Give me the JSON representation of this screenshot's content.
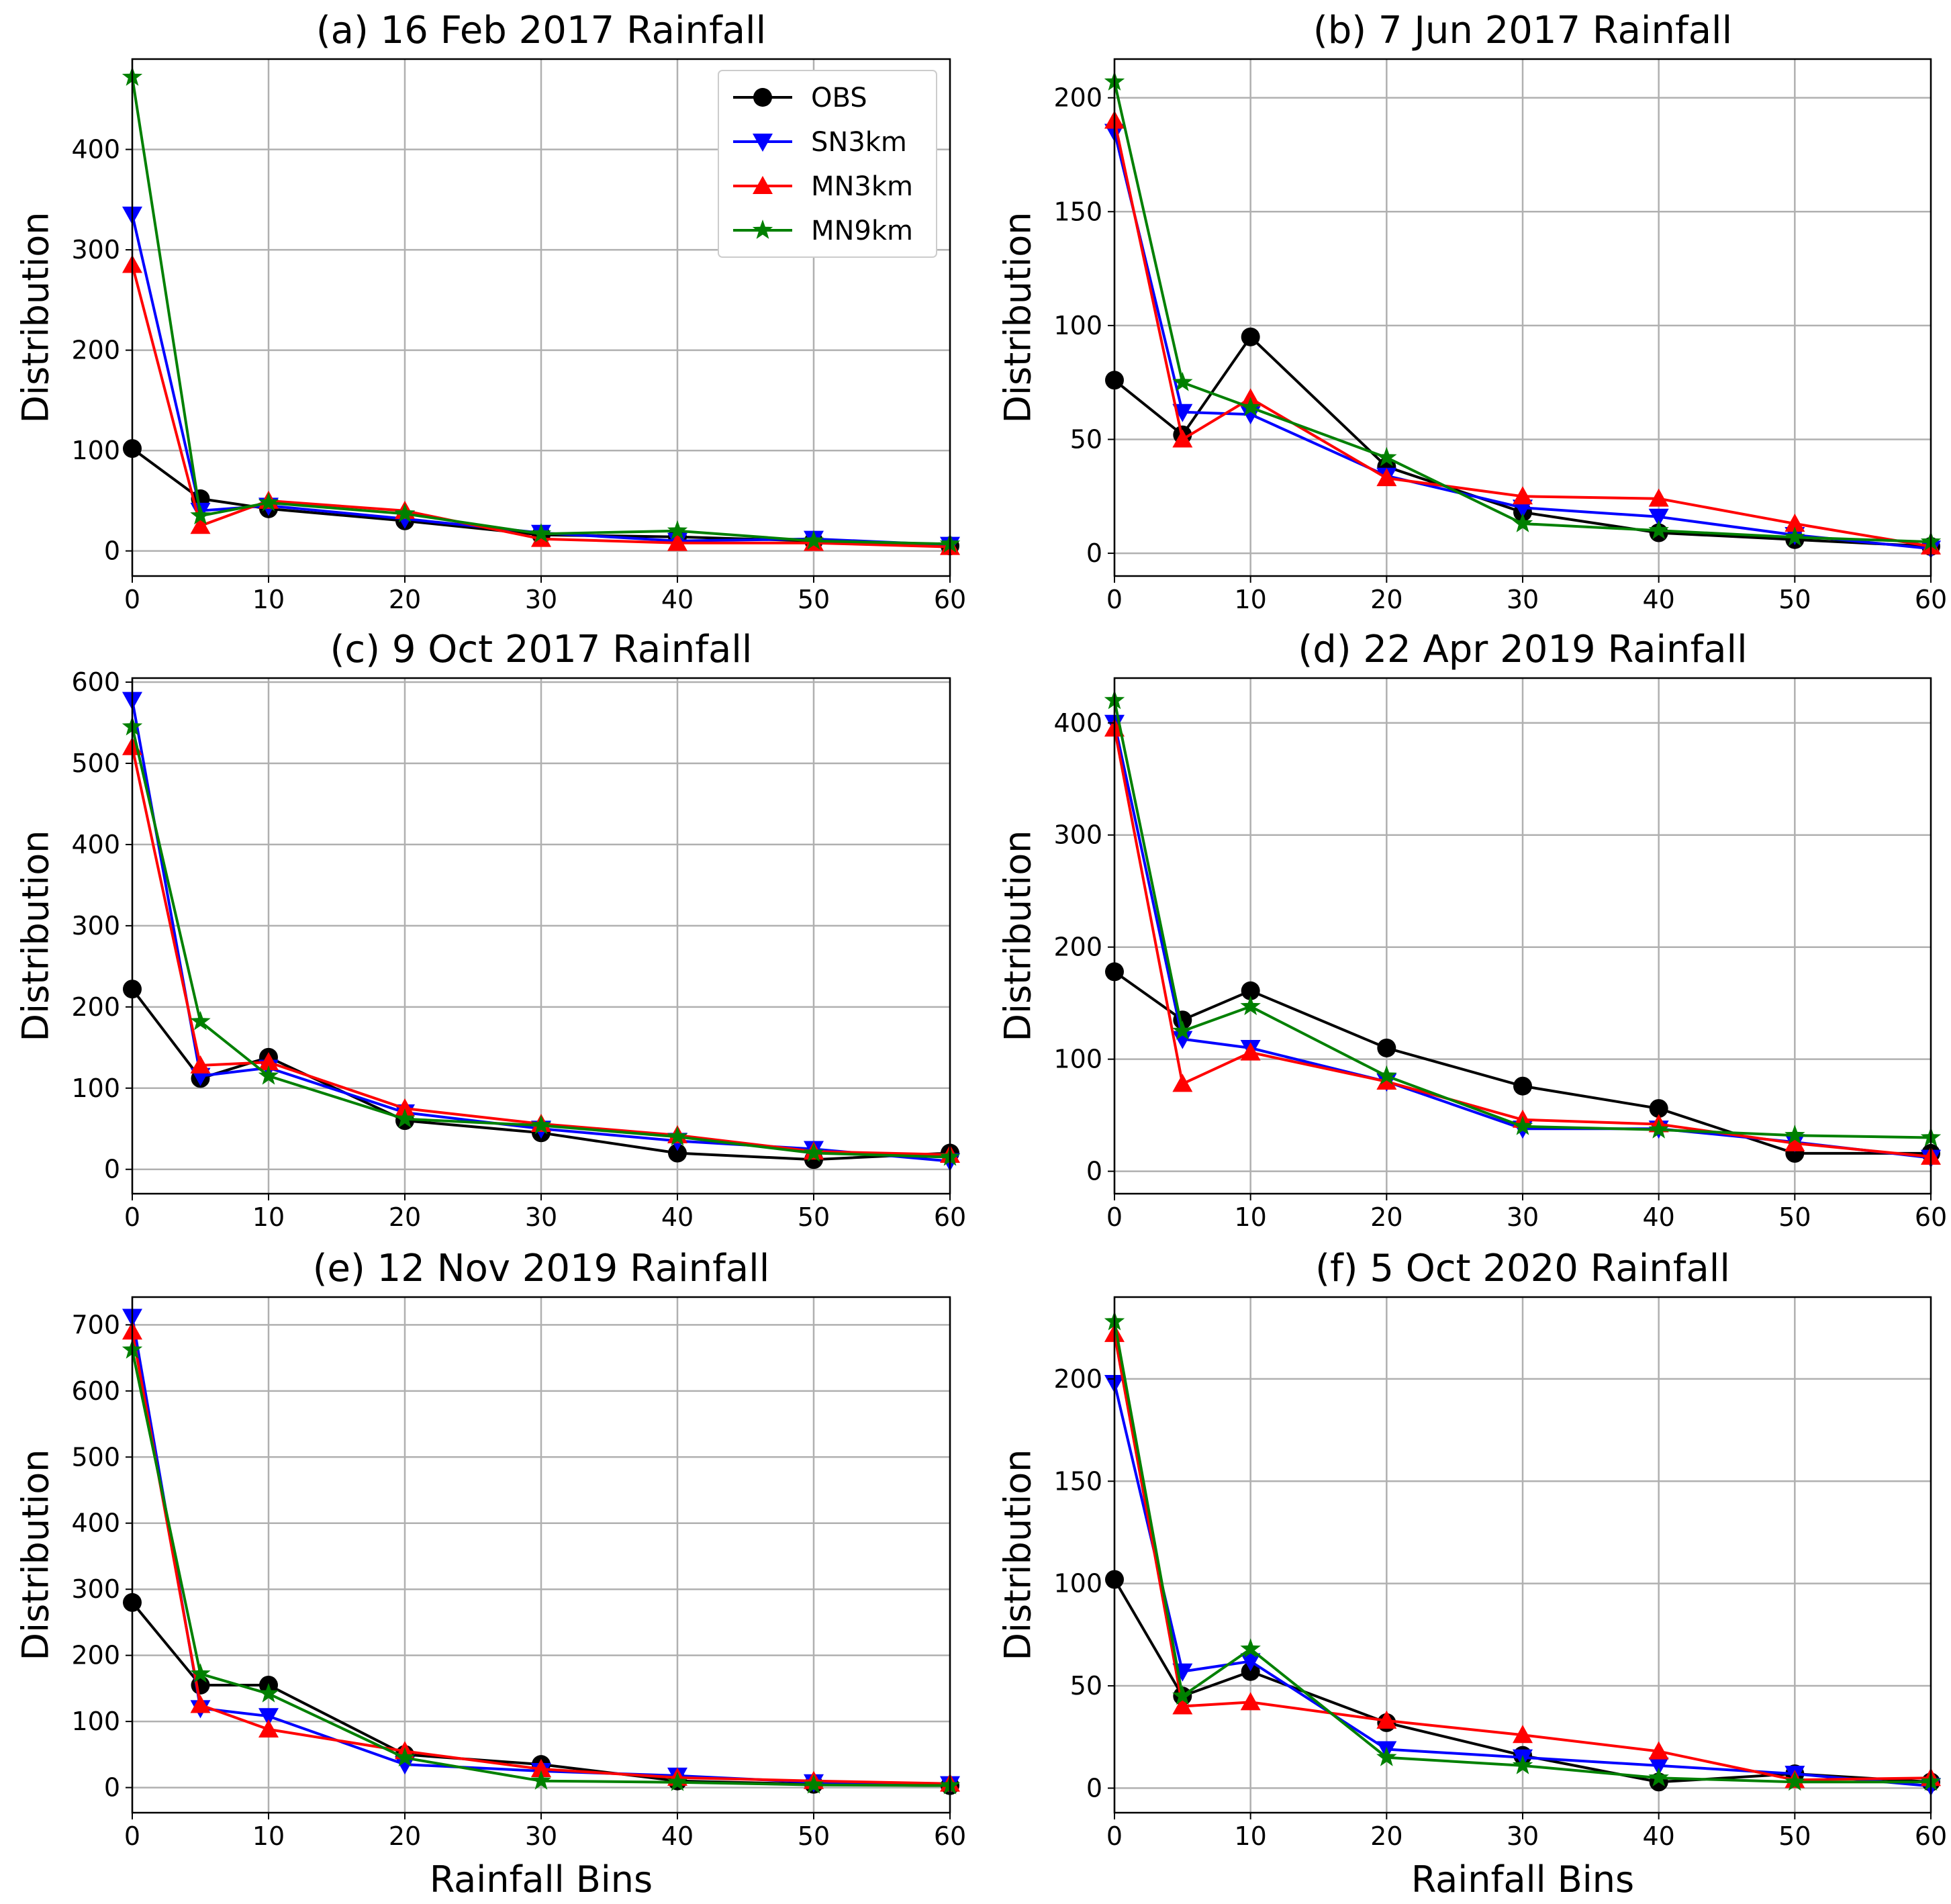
{
  "chart_data": [
    {
      "type": "line",
      "title": "(a) 16 Feb 2017 Rainfall",
      "xlabel": "",
      "ylabel": "Distribution",
      "x": [
        0,
        5,
        10,
        20,
        30,
        40,
        50,
        60
      ],
      "xlim": [
        0,
        60
      ],
      "ylim": [
        -25,
        490
      ],
      "xticks": [
        0,
        10,
        20,
        30,
        40,
        50,
        60
      ],
      "yticks": [
        0,
        100,
        200,
        300,
        400
      ],
      "grid": true,
      "legend": true,
      "legend_position": "top-right",
      "series": [
        {
          "name": "OBS",
          "values": [
            102,
            52,
            42,
            30,
            16,
            14,
            10,
            5
          ]
        },
        {
          "name": "SN3km",
          "values": [
            335,
            40,
            45,
            32,
            18,
            10,
            12,
            6
          ]
        },
        {
          "name": "MN3km",
          "values": [
            285,
            25,
            50,
            40,
            12,
            8,
            8,
            4
          ]
        },
        {
          "name": "MN9km",
          "values": [
            472,
            35,
            48,
            37,
            17,
            20,
            10,
            7
          ]
        }
      ]
    },
    {
      "type": "line",
      "title": "(b) 7 Jun 2017 Rainfall",
      "xlabel": "",
      "ylabel": "Distribution",
      "x": [
        0,
        5,
        10,
        20,
        30,
        40,
        50,
        60
      ],
      "xlim": [
        0,
        60
      ],
      "ylim": [
        -10,
        217
      ],
      "xticks": [
        0,
        10,
        20,
        30,
        40,
        50,
        60
      ],
      "yticks": [
        0,
        50,
        100,
        150,
        200
      ],
      "grid": true,
      "legend": false,
      "series": [
        {
          "name": "OBS",
          "values": [
            76,
            52,
            95,
            38,
            18,
            9,
            6,
            3
          ]
        },
        {
          "name": "SN3km",
          "values": [
            185,
            62,
            61,
            34,
            20,
            16,
            8,
            2
          ]
        },
        {
          "name": "MN3km",
          "values": [
            190,
            50,
            68,
            33,
            25,
            24,
            13,
            3
          ]
        },
        {
          "name": "MN9km",
          "values": [
            207,
            75,
            64,
            42,
            13,
            10,
            7,
            5
          ]
        }
      ]
    },
    {
      "type": "line",
      "title": "(c) 9 Oct 2017 Rainfall",
      "xlabel": "",
      "ylabel": "Distribution",
      "x": [
        0,
        5,
        10,
        20,
        30,
        40,
        50,
        60
      ],
      "xlim": [
        0,
        60
      ],
      "ylim": [
        -30,
        605
      ],
      "xticks": [
        0,
        10,
        20,
        30,
        40,
        50,
        60
      ],
      "yticks": [
        0,
        100,
        200,
        300,
        400,
        500,
        600
      ],
      "grid": true,
      "legend": false,
      "series": [
        {
          "name": "OBS",
          "values": [
            222,
            112,
            138,
            60,
            45,
            20,
            12,
            20
          ]
        },
        {
          "name": "SN3km",
          "values": [
            578,
            115,
            125,
            70,
            50,
            35,
            25,
            10
          ]
        },
        {
          "name": "MN3km",
          "values": [
            520,
            128,
            132,
            75,
            56,
            42,
            22,
            18
          ]
        },
        {
          "name": "MN9km",
          "values": [
            545,
            182,
            115,
            62,
            54,
            40,
            20,
            15
          ]
        }
      ]
    },
    {
      "type": "line",
      "title": "(d) 22 Apr 2019 Rainfall",
      "xlabel": "",
      "ylabel": "Distribution",
      "x": [
        0,
        5,
        10,
        20,
        30,
        40,
        50,
        60
      ],
      "xlim": [
        0,
        60
      ],
      "ylim": [
        -20,
        440
      ],
      "xticks": [
        0,
        10,
        20,
        30,
        40,
        50,
        60
      ],
      "yticks": [
        0,
        100,
        200,
        300,
        400
      ],
      "grid": true,
      "legend": false,
      "series": [
        {
          "name": "OBS",
          "values": [
            178,
            135,
            161,
            110,
            76,
            56,
            16,
            16
          ]
        },
        {
          "name": "SN3km",
          "values": [
            400,
            118,
            110,
            80,
            38,
            38,
            26,
            12
          ]
        },
        {
          "name": "MN3km",
          "values": [
            395,
            78,
            106,
            80,
            46,
            42,
            25,
            13
          ]
        },
        {
          "name": "MN9km",
          "values": [
            420,
            125,
            147,
            85,
            40,
            37,
            32,
            30
          ]
        }
      ]
    },
    {
      "type": "line",
      "title": "(e) 12 Nov 2019 Rainfall",
      "xlabel": "Rainfall Bins",
      "ylabel": "Distribution",
      "x": [
        0,
        5,
        10,
        20,
        30,
        40,
        50,
        60
      ],
      "xlim": [
        0,
        60
      ],
      "ylim": [
        -38,
        742
      ],
      "xticks": [
        0,
        10,
        20,
        30,
        40,
        50,
        60
      ],
      "yticks": [
        0,
        100,
        200,
        300,
        400,
        500,
        600,
        700
      ],
      "grid": true,
      "legend": false,
      "series": [
        {
          "name": "OBS",
          "values": [
            280,
            155,
            155,
            50,
            35,
            10,
            5,
            3
          ]
        },
        {
          "name": "SN3km",
          "values": [
            712,
            120,
            108,
            35,
            25,
            18,
            8,
            5
          ]
        },
        {
          "name": "MN3km",
          "values": [
            690,
            125,
            88,
            55,
            28,
            15,
            10,
            6
          ]
        },
        {
          "name": "MN9km",
          "values": [
            662,
            172,
            142,
            45,
            10,
            8,
            4,
            3
          ]
        }
      ]
    },
    {
      "type": "line",
      "title": "(f) 5 Oct 2020 Rainfall",
      "xlabel": "Rainfall Bins",
      "ylabel": "Distribution",
      "x": [
        0,
        5,
        10,
        20,
        30,
        40,
        50,
        60
      ],
      "xlim": [
        0,
        60
      ],
      "ylim": [
        -12,
        240
      ],
      "xticks": [
        0,
        10,
        20,
        30,
        40,
        50,
        60
      ],
      "yticks": [
        0,
        50,
        100,
        150,
        200
      ],
      "grid": true,
      "legend": false,
      "series": [
        {
          "name": "OBS",
          "values": [
            102,
            45,
            57,
            32,
            16,
            3,
            7,
            3
          ]
        },
        {
          "name": "SN3km",
          "values": [
            198,
            57,
            62,
            19,
            15,
            11,
            7,
            1
          ]
        },
        {
          "name": "MN3km",
          "values": [
            222,
            40,
            42,
            33,
            26,
            18,
            4,
            5
          ]
        },
        {
          "name": "MN9km",
          "values": [
            228,
            45,
            68,
            15,
            11,
            5,
            3,
            3
          ]
        }
      ]
    }
  ],
  "legend": {
    "entries": [
      "OBS",
      "SN3km",
      "MN3km",
      "MN9km"
    ]
  },
  "styles": {
    "OBS": {
      "color": "#000000",
      "marker": "circle"
    },
    "SN3km": {
      "color": "#0000ff",
      "marker": "triangle-down"
    },
    "MN3km": {
      "color": "#ff0000",
      "marker": "triangle-up"
    },
    "MN9km": {
      "color": "#008000",
      "marker": "star"
    }
  }
}
